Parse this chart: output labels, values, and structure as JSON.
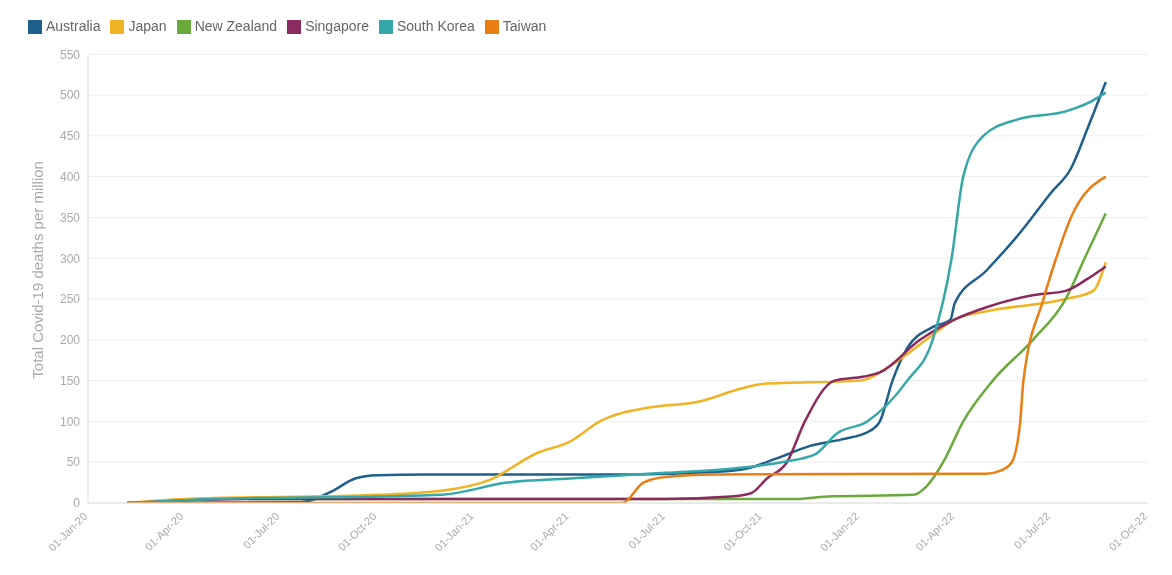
{
  "chart_data": {
    "type": "line",
    "ylabel": "Total Covid-19 deaths per million",
    "xlim": [
      "2020-01-01",
      "2022-10-01"
    ],
    "xticks": [
      {
        "value": "2020-01-01",
        "label": "01-Jan-20"
      },
      {
        "value": "2020-04-01",
        "label": "01-Apr-20"
      },
      {
        "value": "2020-07-01",
        "label": "01-Jul-20"
      },
      {
        "value": "2020-10-01",
        "label": "01-Oct-20"
      },
      {
        "value": "2021-01-01",
        "label": "01-Jan-21"
      },
      {
        "value": "2021-04-01",
        "label": "01-Apr-21"
      },
      {
        "value": "2021-07-01",
        "label": "01-Jul-21"
      },
      {
        "value": "2021-10-01",
        "label": "01-Oct-21"
      },
      {
        "value": "2022-01-01",
        "label": "01-Jan-22"
      },
      {
        "value": "2022-04-01",
        "label": "01-Apr-22"
      },
      {
        "value": "2022-07-01",
        "label": "01-Jul-22"
      },
      {
        "value": "2022-10-01",
        "label": "01-Oct-22"
      }
    ],
    "ylim": [
      0,
      550
    ],
    "yticks": [
      0,
      50,
      100,
      150,
      200,
      250,
      300,
      350,
      400,
      450,
      500,
      550
    ],
    "grid": "y",
    "legend": "top left",
    "marker": "none",
    "line_style": "solid",
    "series": [
      {
        "name": "Australia",
        "color": "#1f5f8b",
        "x": [
          "2020-02-07",
          "2020-07-20",
          "2020-08-20",
          "2020-09-10",
          "2020-10-01",
          "2020-11-15",
          "2021-06-01",
          "2021-08-15",
          "2021-09-15",
          "2021-10-15",
          "2021-11-15",
          "2021-12-15",
          "2022-01-10",
          "2022-01-20",
          "2022-02-01",
          "2022-02-15",
          "2022-03-10",
          "2022-03-28",
          "2022-04-01",
          "2022-05-01",
          "2022-06-01",
          "2022-07-01",
          "2022-07-20",
          "2022-08-05",
          "2022-08-22"
        ],
        "values": [
          0,
          1,
          15,
          30,
          34,
          35,
          35,
          38,
          42,
          55,
          70,
          78,
          88,
          100,
          150,
          190,
          215,
          225,
          245,
          285,
          330,
          380,
          410,
          460,
          516
        ]
      },
      {
        "name": "Japan",
        "color": "#f0b323",
        "x": [
          "2020-02-07",
          "2020-04-01",
          "2020-10-01",
          "2020-12-01",
          "2021-01-15",
          "2021-03-01",
          "2021-04-01",
          "2021-05-01",
          "2021-06-15",
          "2021-08-01",
          "2021-09-10",
          "2021-10-01",
          "2022-01-01",
          "2022-02-01",
          "2022-03-10",
          "2022-04-01",
          "2022-05-01",
          "2022-07-15",
          "2022-08-10",
          "2022-08-22"
        ],
        "values": [
          0,
          5,
          10,
          15,
          28,
          61,
          75,
          101,
          117,
          124,
          140,
          146,
          150,
          170,
          205,
          225,
          235,
          250,
          260,
          295
        ]
      },
      {
        "name": "New Zealand",
        "color": "#6aaa3a",
        "x": [
          "2020-06-01",
          "2021-11-01",
          "2021-12-01",
          "2022-02-21",
          "2022-03-05",
          "2022-03-21",
          "2022-04-09",
          "2022-05-07",
          "2022-06-14",
          "2022-07-15",
          "2022-08-02",
          "2022-08-22"
        ],
        "values": [
          5,
          5,
          8,
          10,
          20,
          50,
          100,
          150,
          200,
          250,
          300,
          355
        ]
      },
      {
        "name": "Singapore",
        "color": "#8b2a5e",
        "x": [
          "2020-02-07",
          "2020-06-01",
          "2021-07-01",
          "2021-09-01",
          "2021-09-20",
          "2021-10-05",
          "2021-10-24",
          "2021-11-10",
          "2021-12-08",
          "2022-01-05",
          "2022-01-20",
          "2022-02-27",
          "2022-04-01",
          "2022-05-01",
          "2022-06-15",
          "2022-07-15",
          "2022-08-05",
          "2022-08-22"
        ],
        "values": [
          0,
          5,
          5,
          8,
          12,
          30,
          50,
          100,
          150,
          155,
          160,
          200,
          225,
          240,
          255,
          260,
          275,
          290
        ]
      },
      {
        "name": "South Korea",
        "color": "#34a7a9",
        "x": [
          "2020-02-07",
          "2020-05-01",
          "2020-10-01",
          "2020-12-01",
          "2021-02-01",
          "2021-04-01",
          "2021-07-01",
          "2021-09-01",
          "2021-10-19",
          "2021-11-20",
          "2021-12-10",
          "2022-01-08",
          "2022-02-15",
          "2022-03-11",
          "2022-03-29",
          "2022-04-09",
          "2022-04-28",
          "2022-05-30",
          "2022-07-15",
          "2022-08-05",
          "2022-08-22"
        ],
        "values": [
          0,
          5,
          8,
          10,
          25,
          30,
          37,
          42,
          50,
          60,
          85,
          100,
          150,
          200,
          300,
          400,
          450,
          470,
          480,
          490,
          503
        ]
      },
      {
        "name": "Taiwan",
        "color": "#e87e14",
        "x": [
          "2020-02-07",
          "2021-05-21",
          "2021-06-10",
          "2021-07-01",
          "2021-08-15",
          "2022-05-01",
          "2022-05-15",
          "2022-05-25",
          "2022-06-02",
          "2022-06-05",
          "2022-06-24",
          "2022-07-06",
          "2022-07-20",
          "2022-08-22"
        ],
        "values": [
          0,
          0,
          25,
          32,
          35,
          36,
          40,
          50,
          100,
          150,
          250,
          300,
          350,
          400
        ]
      }
    ]
  }
}
